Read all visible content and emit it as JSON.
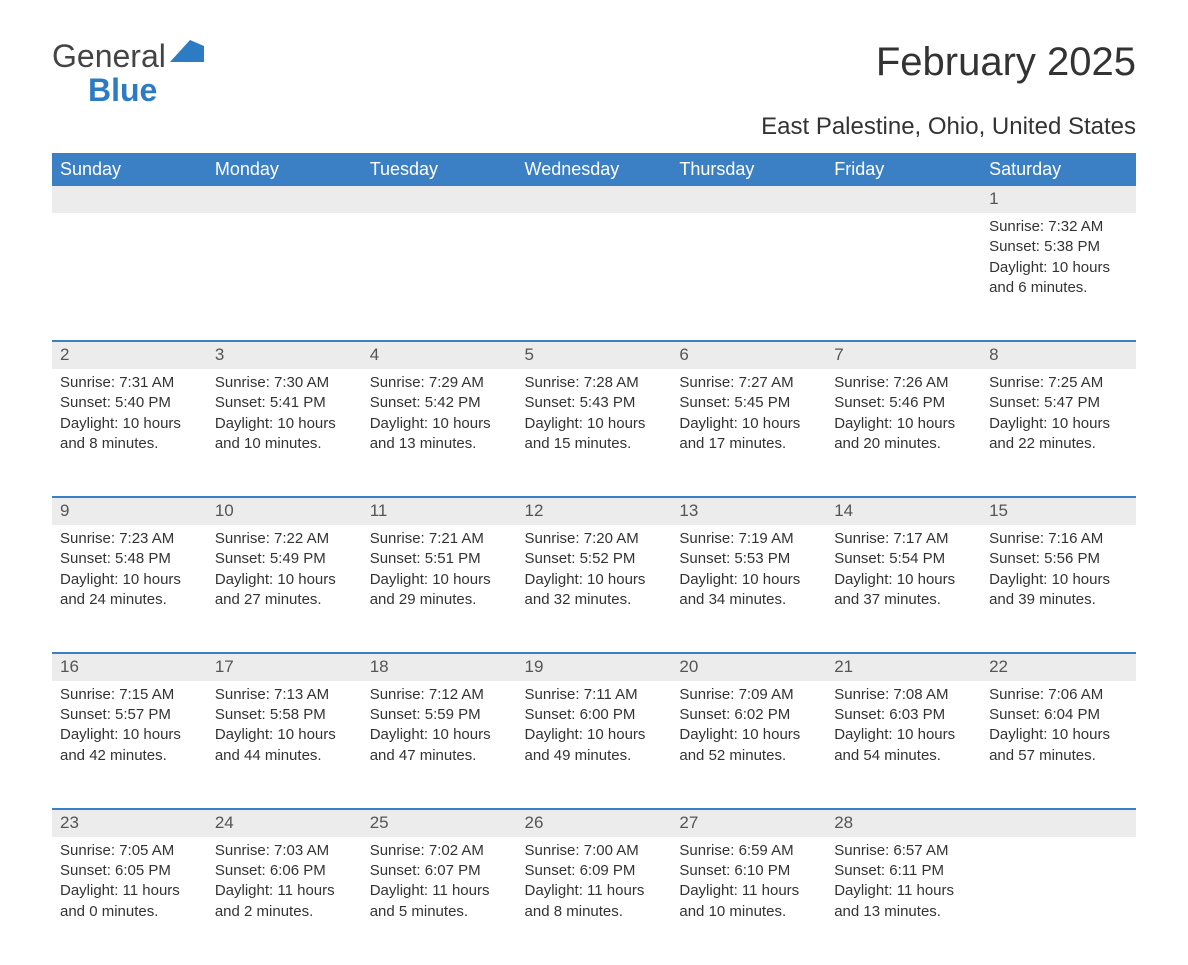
{
  "logo": {
    "general": "General",
    "blue": "Blue",
    "mark_color": "#2d7bc2"
  },
  "title": "February 2025",
  "subtitle": "East Palestine, Ohio, United States",
  "colors": {
    "header_bg": "#3b7fc4",
    "header_fg": "#ffffff",
    "daynum_bg": "#ececec",
    "row_divider": "#3b7fc4",
    "text": "#333333",
    "logo_blue": "#2d7bc2",
    "background": "#ffffff"
  },
  "typography": {
    "title_fontsize": 40,
    "subtitle_fontsize": 24,
    "header_fontsize": 18,
    "body_fontsize": 15,
    "daynum_fontsize": 17
  },
  "weekdays": [
    "Sunday",
    "Monday",
    "Tuesday",
    "Wednesday",
    "Thursday",
    "Friday",
    "Saturday"
  ],
  "weeks": [
    [
      null,
      null,
      null,
      null,
      null,
      null,
      {
        "day": "1",
        "sunrise": "Sunrise: 7:32 AM",
        "sunset": "Sunset: 5:38 PM",
        "daylight": "Daylight: 10 hours and 6 minutes."
      }
    ],
    [
      {
        "day": "2",
        "sunrise": "Sunrise: 7:31 AM",
        "sunset": "Sunset: 5:40 PM",
        "daylight": "Daylight: 10 hours and 8 minutes."
      },
      {
        "day": "3",
        "sunrise": "Sunrise: 7:30 AM",
        "sunset": "Sunset: 5:41 PM",
        "daylight": "Daylight: 10 hours and 10 minutes."
      },
      {
        "day": "4",
        "sunrise": "Sunrise: 7:29 AM",
        "sunset": "Sunset: 5:42 PM",
        "daylight": "Daylight: 10 hours and 13 minutes."
      },
      {
        "day": "5",
        "sunrise": "Sunrise: 7:28 AM",
        "sunset": "Sunset: 5:43 PM",
        "daylight": "Daylight: 10 hours and 15 minutes."
      },
      {
        "day": "6",
        "sunrise": "Sunrise: 7:27 AM",
        "sunset": "Sunset: 5:45 PM",
        "daylight": "Daylight: 10 hours and 17 minutes."
      },
      {
        "day": "7",
        "sunrise": "Sunrise: 7:26 AM",
        "sunset": "Sunset: 5:46 PM",
        "daylight": "Daylight: 10 hours and 20 minutes."
      },
      {
        "day": "8",
        "sunrise": "Sunrise: 7:25 AM",
        "sunset": "Sunset: 5:47 PM",
        "daylight": "Daylight: 10 hours and 22 minutes."
      }
    ],
    [
      {
        "day": "9",
        "sunrise": "Sunrise: 7:23 AM",
        "sunset": "Sunset: 5:48 PM",
        "daylight": "Daylight: 10 hours and 24 minutes."
      },
      {
        "day": "10",
        "sunrise": "Sunrise: 7:22 AM",
        "sunset": "Sunset: 5:49 PM",
        "daylight": "Daylight: 10 hours and 27 minutes."
      },
      {
        "day": "11",
        "sunrise": "Sunrise: 7:21 AM",
        "sunset": "Sunset: 5:51 PM",
        "daylight": "Daylight: 10 hours and 29 minutes."
      },
      {
        "day": "12",
        "sunrise": "Sunrise: 7:20 AM",
        "sunset": "Sunset: 5:52 PM",
        "daylight": "Daylight: 10 hours and 32 minutes."
      },
      {
        "day": "13",
        "sunrise": "Sunrise: 7:19 AM",
        "sunset": "Sunset: 5:53 PM",
        "daylight": "Daylight: 10 hours and 34 minutes."
      },
      {
        "day": "14",
        "sunrise": "Sunrise: 7:17 AM",
        "sunset": "Sunset: 5:54 PM",
        "daylight": "Daylight: 10 hours and 37 minutes."
      },
      {
        "day": "15",
        "sunrise": "Sunrise: 7:16 AM",
        "sunset": "Sunset: 5:56 PM",
        "daylight": "Daylight: 10 hours and 39 minutes."
      }
    ],
    [
      {
        "day": "16",
        "sunrise": "Sunrise: 7:15 AM",
        "sunset": "Sunset: 5:57 PM",
        "daylight": "Daylight: 10 hours and 42 minutes."
      },
      {
        "day": "17",
        "sunrise": "Sunrise: 7:13 AM",
        "sunset": "Sunset: 5:58 PM",
        "daylight": "Daylight: 10 hours and 44 minutes."
      },
      {
        "day": "18",
        "sunrise": "Sunrise: 7:12 AM",
        "sunset": "Sunset: 5:59 PM",
        "daylight": "Daylight: 10 hours and 47 minutes."
      },
      {
        "day": "19",
        "sunrise": "Sunrise: 7:11 AM",
        "sunset": "Sunset: 6:00 PM",
        "daylight": "Daylight: 10 hours and 49 minutes."
      },
      {
        "day": "20",
        "sunrise": "Sunrise: 7:09 AM",
        "sunset": "Sunset: 6:02 PM",
        "daylight": "Daylight: 10 hours and 52 minutes."
      },
      {
        "day": "21",
        "sunrise": "Sunrise: 7:08 AM",
        "sunset": "Sunset: 6:03 PM",
        "daylight": "Daylight: 10 hours and 54 minutes."
      },
      {
        "day": "22",
        "sunrise": "Sunrise: 7:06 AM",
        "sunset": "Sunset: 6:04 PM",
        "daylight": "Daylight: 10 hours and 57 minutes."
      }
    ],
    [
      {
        "day": "23",
        "sunrise": "Sunrise: 7:05 AM",
        "sunset": "Sunset: 6:05 PM",
        "daylight": "Daylight: 11 hours and 0 minutes."
      },
      {
        "day": "24",
        "sunrise": "Sunrise: 7:03 AM",
        "sunset": "Sunset: 6:06 PM",
        "daylight": "Daylight: 11 hours and 2 minutes."
      },
      {
        "day": "25",
        "sunrise": "Sunrise: 7:02 AM",
        "sunset": "Sunset: 6:07 PM",
        "daylight": "Daylight: 11 hours and 5 minutes."
      },
      {
        "day": "26",
        "sunrise": "Sunrise: 7:00 AM",
        "sunset": "Sunset: 6:09 PM",
        "daylight": "Daylight: 11 hours and 8 minutes."
      },
      {
        "day": "27",
        "sunrise": "Sunrise: 6:59 AM",
        "sunset": "Sunset: 6:10 PM",
        "daylight": "Daylight: 11 hours and 10 minutes."
      },
      {
        "day": "28",
        "sunrise": "Sunrise: 6:57 AM",
        "sunset": "Sunset: 6:11 PM",
        "daylight": "Daylight: 11 hours and 13 minutes."
      },
      null
    ]
  ]
}
